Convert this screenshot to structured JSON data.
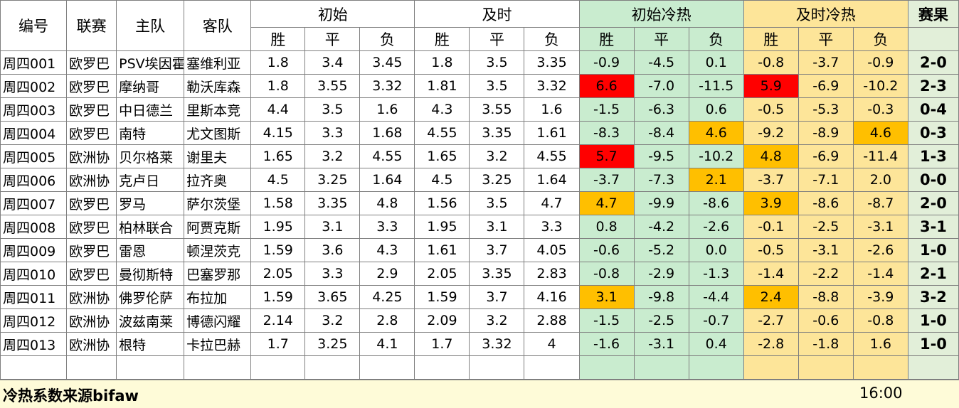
{
  "headers": {
    "id": "编号",
    "league": "联赛",
    "home": "主队",
    "away": "客队",
    "initial": "初始",
    "live": "及时",
    "initial_heat": "初始冷热",
    "live_heat": "及时冷热",
    "result": "赛果",
    "win": "胜",
    "draw": "平",
    "loss": "负"
  },
  "highlight_colors": {
    "red": "#ff0000",
    "orange": "#ffbf00",
    "green_bg": "#c9eccf",
    "yellow_bg": "#fde599"
  },
  "rows": [
    {
      "id": "周四001",
      "league": "欧罗巴",
      "home": "PSV埃因霍",
      "away": "塞维利亚",
      "i_w": "1.8",
      "i_d": "3.4",
      "i_l": "3.45",
      "l_w": "1.8",
      "l_d": "3.5",
      "l_l": "3.35",
      "ih_w": "-0.9",
      "ih_d": "-4.5",
      "ih_l": "0.1",
      "lh_w": "-0.8",
      "lh_d": "-3.7",
      "lh_l": "-0.9",
      "result": "2-0"
    },
    {
      "id": "周四002",
      "league": "欧罗巴",
      "home": "摩纳哥",
      "away": "勒沃库森",
      "i_w": "1.8",
      "i_d": "3.55",
      "i_l": "3.32",
      "l_w": "1.81",
      "l_d": "3.5",
      "l_l": "3.32",
      "ih_w": "6.6",
      "ih_d": "-7.0",
      "ih_l": "-11.5",
      "lh_w": "5.9",
      "lh_d": "-6.9",
      "lh_l": "-10.2",
      "result": "2-3"
    },
    {
      "id": "周四003",
      "league": "欧罗巴",
      "home": "中日德兰",
      "away": "里斯本竞",
      "i_w": "4.4",
      "i_d": "3.5",
      "i_l": "1.6",
      "l_w": "4.3",
      "l_d": "3.55",
      "l_l": "1.6",
      "ih_w": "-1.5",
      "ih_d": "-6.3",
      "ih_l": "0.6",
      "lh_w": "-0.5",
      "lh_d": "-5.3",
      "lh_l": "-0.3",
      "result": "0-4"
    },
    {
      "id": "周四004",
      "league": "欧罗巴",
      "home": "南特",
      "away": "尤文图斯",
      "i_w": "4.15",
      "i_d": "3.3",
      "i_l": "1.68",
      "l_w": "4.55",
      "l_d": "3.35",
      "l_l": "1.61",
      "ih_w": "-8.3",
      "ih_d": "-8.4",
      "ih_l": "4.6",
      "lh_w": "-9.2",
      "lh_d": "-8.9",
      "lh_l": "4.6",
      "result": "0-3"
    },
    {
      "id": "周四005",
      "league": "欧洲协",
      "home": "贝尔格莱",
      "away": "谢里夫",
      "i_w": "1.65",
      "i_d": "3.2",
      "i_l": "4.55",
      "l_w": "1.65",
      "l_d": "3.2",
      "l_l": "4.55",
      "ih_w": "5.7",
      "ih_d": "-9.5",
      "ih_l": "-10.2",
      "lh_w": "4.8",
      "lh_d": "-6.9",
      "lh_l": "-11.4",
      "result": "1-3"
    },
    {
      "id": "周四006",
      "league": "欧洲协",
      "home": "克卢日",
      "away": "拉齐奥",
      "i_w": "4.5",
      "i_d": "3.25",
      "i_l": "1.64",
      "l_w": "4.5",
      "l_d": "3.25",
      "l_l": "1.64",
      "ih_w": "-3.7",
      "ih_d": "-7.3",
      "ih_l": "2.1",
      "lh_w": "-3.7",
      "lh_d": "-7.1",
      "lh_l": "2.0",
      "result": "0-0"
    },
    {
      "id": "周四007",
      "league": "欧罗巴",
      "home": "罗马",
      "away": "萨尔茨堡",
      "i_w": "1.58",
      "i_d": "3.35",
      "i_l": "4.8",
      "l_w": "1.56",
      "l_d": "3.5",
      "l_l": "4.7",
      "ih_w": "4.7",
      "ih_d": "-9.9",
      "ih_l": "-8.6",
      "lh_w": "3.9",
      "lh_d": "-8.6",
      "lh_l": "-8.7",
      "result": "2-0"
    },
    {
      "id": "周四008",
      "league": "欧罗巴",
      "home": "柏林联合",
      "away": "阿贾克斯",
      "i_w": "1.95",
      "i_d": "3.1",
      "i_l": "3.3",
      "l_w": "1.95",
      "l_d": "3.1",
      "l_l": "3.3",
      "ih_w": "0.8",
      "ih_d": "-4.2",
      "ih_l": "-2.6",
      "lh_w": "-0.1",
      "lh_d": "-2.5",
      "lh_l": "-3.1",
      "result": "3-1"
    },
    {
      "id": "周四009",
      "league": "欧罗巴",
      "home": "雷恩",
      "away": "顿涅茨克",
      "i_w": "1.59",
      "i_d": "3.6",
      "i_l": "4.3",
      "l_w": "1.61",
      "l_d": "3.7",
      "l_l": "4.05",
      "ih_w": "-0.6",
      "ih_d": "-5.2",
      "ih_l": "0.0",
      "lh_w": "-0.5",
      "lh_d": "-3.1",
      "lh_l": "-2.6",
      "result": "1-0"
    },
    {
      "id": "周四010",
      "league": "欧罗巴",
      "home": "曼彻斯特",
      "away": "巴塞罗那",
      "i_w": "2.05",
      "i_d": "3.3",
      "i_l": "2.9",
      "l_w": "2.05",
      "l_d": "3.35",
      "l_l": "2.83",
      "ih_w": "-0.8",
      "ih_d": "-2.9",
      "ih_l": "-1.3",
      "lh_w": "-1.4",
      "lh_d": "-2.2",
      "lh_l": "-1.4",
      "result": "2-1"
    },
    {
      "id": "周四011",
      "league": "欧洲协",
      "home": "佛罗伦萨",
      "away": "布拉加",
      "i_w": "1.59",
      "i_d": "3.65",
      "i_l": "4.25",
      "l_w": "1.59",
      "l_d": "3.7",
      "l_l": "4.16",
      "ih_w": "3.1",
      "ih_d": "-9.8",
      "ih_l": "-4.4",
      "lh_w": "2.4",
      "lh_d": "-8.8",
      "lh_l": "-3.9",
      "result": "3-2"
    },
    {
      "id": "周四012",
      "league": "欧洲协",
      "home": "波兹南莱",
      "away": "博德闪耀",
      "i_w": "2.14",
      "i_d": "3.2",
      "i_l": "2.8",
      "l_w": "2.09",
      "l_d": "3.2",
      "l_l": "2.88",
      "ih_w": "-1.5",
      "ih_d": "-2.5",
      "ih_l": "-0.7",
      "lh_w": "-2.7",
      "lh_d": "-0.6",
      "lh_l": "-0.8",
      "result": "1-0"
    },
    {
      "id": "周四013",
      "league": "欧洲协",
      "home": "根特",
      "away": "卡拉巴赫",
      "i_w": "1.7",
      "i_d": "3.25",
      "i_l": "4.1",
      "l_w": "1.7",
      "l_d": "3.32",
      "l_l": "4",
      "ih_w": "-1.6",
      "ih_d": "-3.1",
      "ih_l": "0.4",
      "lh_w": "-2.8",
      "lh_d": "-1.8",
      "lh_l": "1.6",
      "result": "1-0"
    }
  ],
  "highlights": [
    {
      "row": 1,
      "col": "ih_w",
      "color": "red"
    },
    {
      "row": 1,
      "col": "lh_w",
      "color": "red"
    },
    {
      "row": 3,
      "col": "ih_l",
      "color": "orange"
    },
    {
      "row": 3,
      "col": "lh_l",
      "color": "orange"
    },
    {
      "row": 4,
      "col": "ih_w",
      "color": "red"
    },
    {
      "row": 4,
      "col": "lh_w",
      "color": "orange"
    },
    {
      "row": 5,
      "col": "ih_l",
      "color": "orange"
    },
    {
      "row": 6,
      "col": "ih_w",
      "color": "orange"
    },
    {
      "row": 6,
      "col": "lh_w",
      "color": "orange"
    },
    {
      "row": 10,
      "col": "ih_w",
      "color": "orange"
    },
    {
      "row": 10,
      "col": "lh_w",
      "color": "orange"
    }
  ],
  "footer": {
    "source": "冷热系数来源bifaw",
    "time": "16:00"
  }
}
